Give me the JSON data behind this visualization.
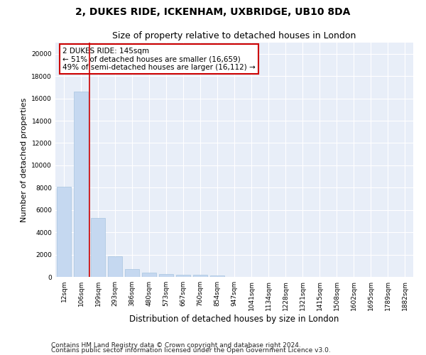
{
  "title": "2, DUKES RIDE, ICKENHAM, UXBRIDGE, UB10 8DA",
  "subtitle": "Size of property relative to detached houses in London",
  "xlabel": "Distribution of detached houses by size in London",
  "ylabel": "Number of detached properties",
  "categories": [
    "12sqm",
    "106sqm",
    "199sqm",
    "293sqm",
    "386sqm",
    "480sqm",
    "573sqm",
    "667sqm",
    "760sqm",
    "854sqm",
    "947sqm",
    "1041sqm",
    "1134sqm",
    "1228sqm",
    "1321sqm",
    "1415sqm",
    "1508sqm",
    "1602sqm",
    "1695sqm",
    "1789sqm",
    "1882sqm"
  ],
  "values": [
    8100,
    16600,
    5300,
    1850,
    700,
    380,
    280,
    210,
    200,
    130,
    0,
    0,
    0,
    0,
    0,
    0,
    0,
    0,
    0,
    0,
    0
  ],
  "bar_color": "#c5d8f0",
  "bar_edge_color": "#a8c4e0",
  "vline_color": "#cc0000",
  "vline_x": 1.5,
  "annotation_text": "2 DUKES RIDE: 145sqm\n← 51% of detached houses are smaller (16,659)\n49% of semi-detached houses are larger (16,112) →",
  "annotation_box_facecolor": "#ffffff",
  "annotation_box_edgecolor": "#cc0000",
  "ylim": [
    0,
    21000
  ],
  "yticks": [
    0,
    2000,
    4000,
    6000,
    8000,
    10000,
    12000,
    14000,
    16000,
    18000,
    20000
  ],
  "footer_line1": "Contains HM Land Registry data © Crown copyright and database right 2024.",
  "footer_line2": "Contains public sector information licensed under the Open Government Licence v3.0.",
  "fig_facecolor": "#ffffff",
  "axes_facecolor": "#e8eef8",
  "grid_color": "#ffffff",
  "title_fontsize": 10,
  "subtitle_fontsize": 9,
  "xlabel_fontsize": 8.5,
  "ylabel_fontsize": 8,
  "tick_fontsize": 6.5,
  "annotation_fontsize": 7.5,
  "footer_fontsize": 6.5
}
